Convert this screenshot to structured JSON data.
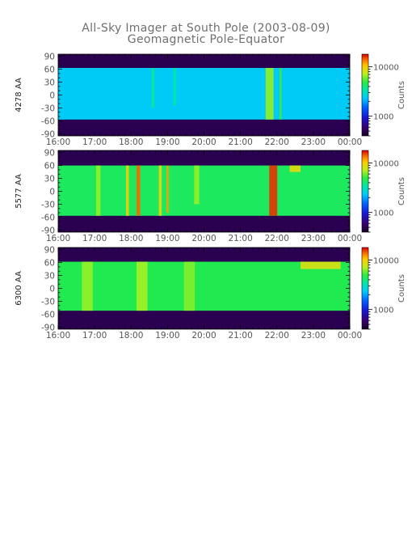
{
  "chart_data": {
    "type": "heatmap",
    "title": "All-Sky Imager at South Pole (2003-08-09)",
    "subtitle": "Geomagnetic Pole-Equator",
    "x_tick_labels": [
      "16:00",
      "17:00",
      "18:00",
      "19:00",
      "20:00",
      "21:00",
      "22:00",
      "23:00",
      "00:00"
    ],
    "x_range_hours": [
      16,
      24
    ],
    "y_ticks": [
      90,
      60,
      30,
      0,
      -30,
      -60,
      -90
    ],
    "y_range": [
      -95,
      95
    ],
    "colorbar": {
      "label": "Counts",
      "scale": "log",
      "ticks": [
        1000,
        10000
      ],
      "tick_labels": [
        "1000",
        "10000"
      ],
      "range": [
        400,
        18000
      ]
    },
    "panels": [
      {
        "ylabel": "4278 AA",
        "valid_lat_range": [
          -57,
          63
        ],
        "base_counts": 2400,
        "features": [
          {
            "time": 18.6,
            "width_h": 0.08,
            "lat_range": [
              -30,
              63
            ],
            "peak_counts": 3600
          },
          {
            "time": 19.2,
            "width_h": 0.08,
            "lat_range": [
              -25,
              63
            ],
            "peak_counts": 3400
          },
          {
            "time": 21.8,
            "width_h": 0.22,
            "lat_range": [
              -57,
              63
            ],
            "peak_counts": 6500
          },
          {
            "time": 22.1,
            "width_h": 0.06,
            "lat_range": [
              -57,
              63
            ],
            "peak_counts": 5200
          }
        ]
      },
      {
        "ylabel": "5577 AA",
        "valid_lat_range": [
          -57,
          60
        ],
        "base_counts": 4400,
        "features": [
          {
            "time": 17.1,
            "width_h": 0.12,
            "lat_range": [
              -57,
              60
            ],
            "peak_counts": 6500
          },
          {
            "time": 17.9,
            "width_h": 0.08,
            "lat_range": [
              -57,
              60
            ],
            "peak_counts": 9500
          },
          {
            "time": 18.2,
            "width_h": 0.1,
            "lat_range": [
              -57,
              60
            ],
            "peak_counts": 14000
          },
          {
            "time": 18.8,
            "width_h": 0.08,
            "lat_range": [
              -57,
              60
            ],
            "peak_counts": 9000
          },
          {
            "time": 19.0,
            "width_h": 0.06,
            "lat_range": [
              -50,
              60
            ],
            "peak_counts": 12000
          },
          {
            "time": 19.8,
            "width_h": 0.14,
            "lat_range": [
              -30,
              60
            ],
            "peak_counts": 6500
          },
          {
            "time": 21.9,
            "width_h": 0.22,
            "lat_range": [
              -57,
              60
            ],
            "peak_counts": 16000
          },
          {
            "time": 22.5,
            "width_h": 0.3,
            "lat_range": [
              45,
              60
            ],
            "peak_counts": 9000
          }
        ]
      },
      {
        "ylabel": "6300 AA",
        "valid_lat_range": [
          -52,
          62
        ],
        "base_counts": 4600,
        "features": [
          {
            "time": 16.8,
            "width_h": 0.3,
            "lat_range": [
              -52,
              62
            ],
            "peak_counts": 6500
          },
          {
            "time": 18.3,
            "width_h": 0.3,
            "lat_range": [
              -52,
              62
            ],
            "peak_counts": 6800
          },
          {
            "time": 19.6,
            "width_h": 0.3,
            "lat_range": [
              -52,
              62
            ],
            "peak_counts": 6200
          },
          {
            "time": 23.2,
            "width_h": 1.1,
            "lat_range": [
              45,
              62
            ],
            "peak_counts": 8500
          }
        ]
      }
    ]
  }
}
